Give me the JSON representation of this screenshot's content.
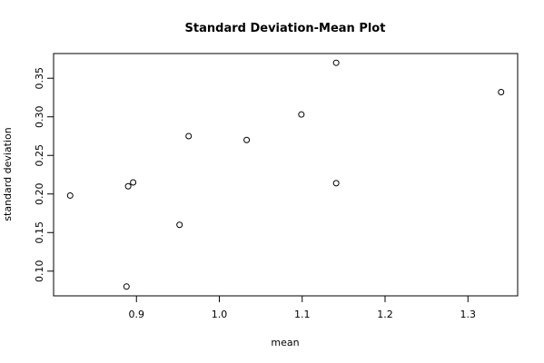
{
  "chart_data": {
    "type": "scatter",
    "title": "Standard Deviation-Mean Plot",
    "xlabel": "mean",
    "ylabel": "standard deviation",
    "xlim": [
      0.8,
      1.36
    ],
    "ylim": [
      0.068,
      0.382
    ],
    "xticks": [
      0.9,
      1.0,
      1.1,
      1.2,
      1.3
    ],
    "xtick_labels": [
      "0.9",
      "1.0",
      "1.1",
      "1.2",
      "1.3"
    ],
    "yticks": [
      0.1,
      0.15,
      0.2,
      0.25,
      0.3,
      0.35
    ],
    "ytick_labels": [
      "0.10",
      "0.15",
      "0.20",
      "0.25",
      "0.30",
      "0.35"
    ],
    "grid": false,
    "legend": "none",
    "marker": "open-circle",
    "x": [
      0.82,
      0.888,
      0.89,
      0.896,
      0.952,
      0.963,
      1.033,
      1.099,
      1.141,
      1.141,
      1.34
    ],
    "y": [
      0.198,
      0.08,
      0.21,
      0.215,
      0.16,
      0.275,
      0.27,
      0.303,
      0.37,
      0.214,
      0.332
    ]
  }
}
